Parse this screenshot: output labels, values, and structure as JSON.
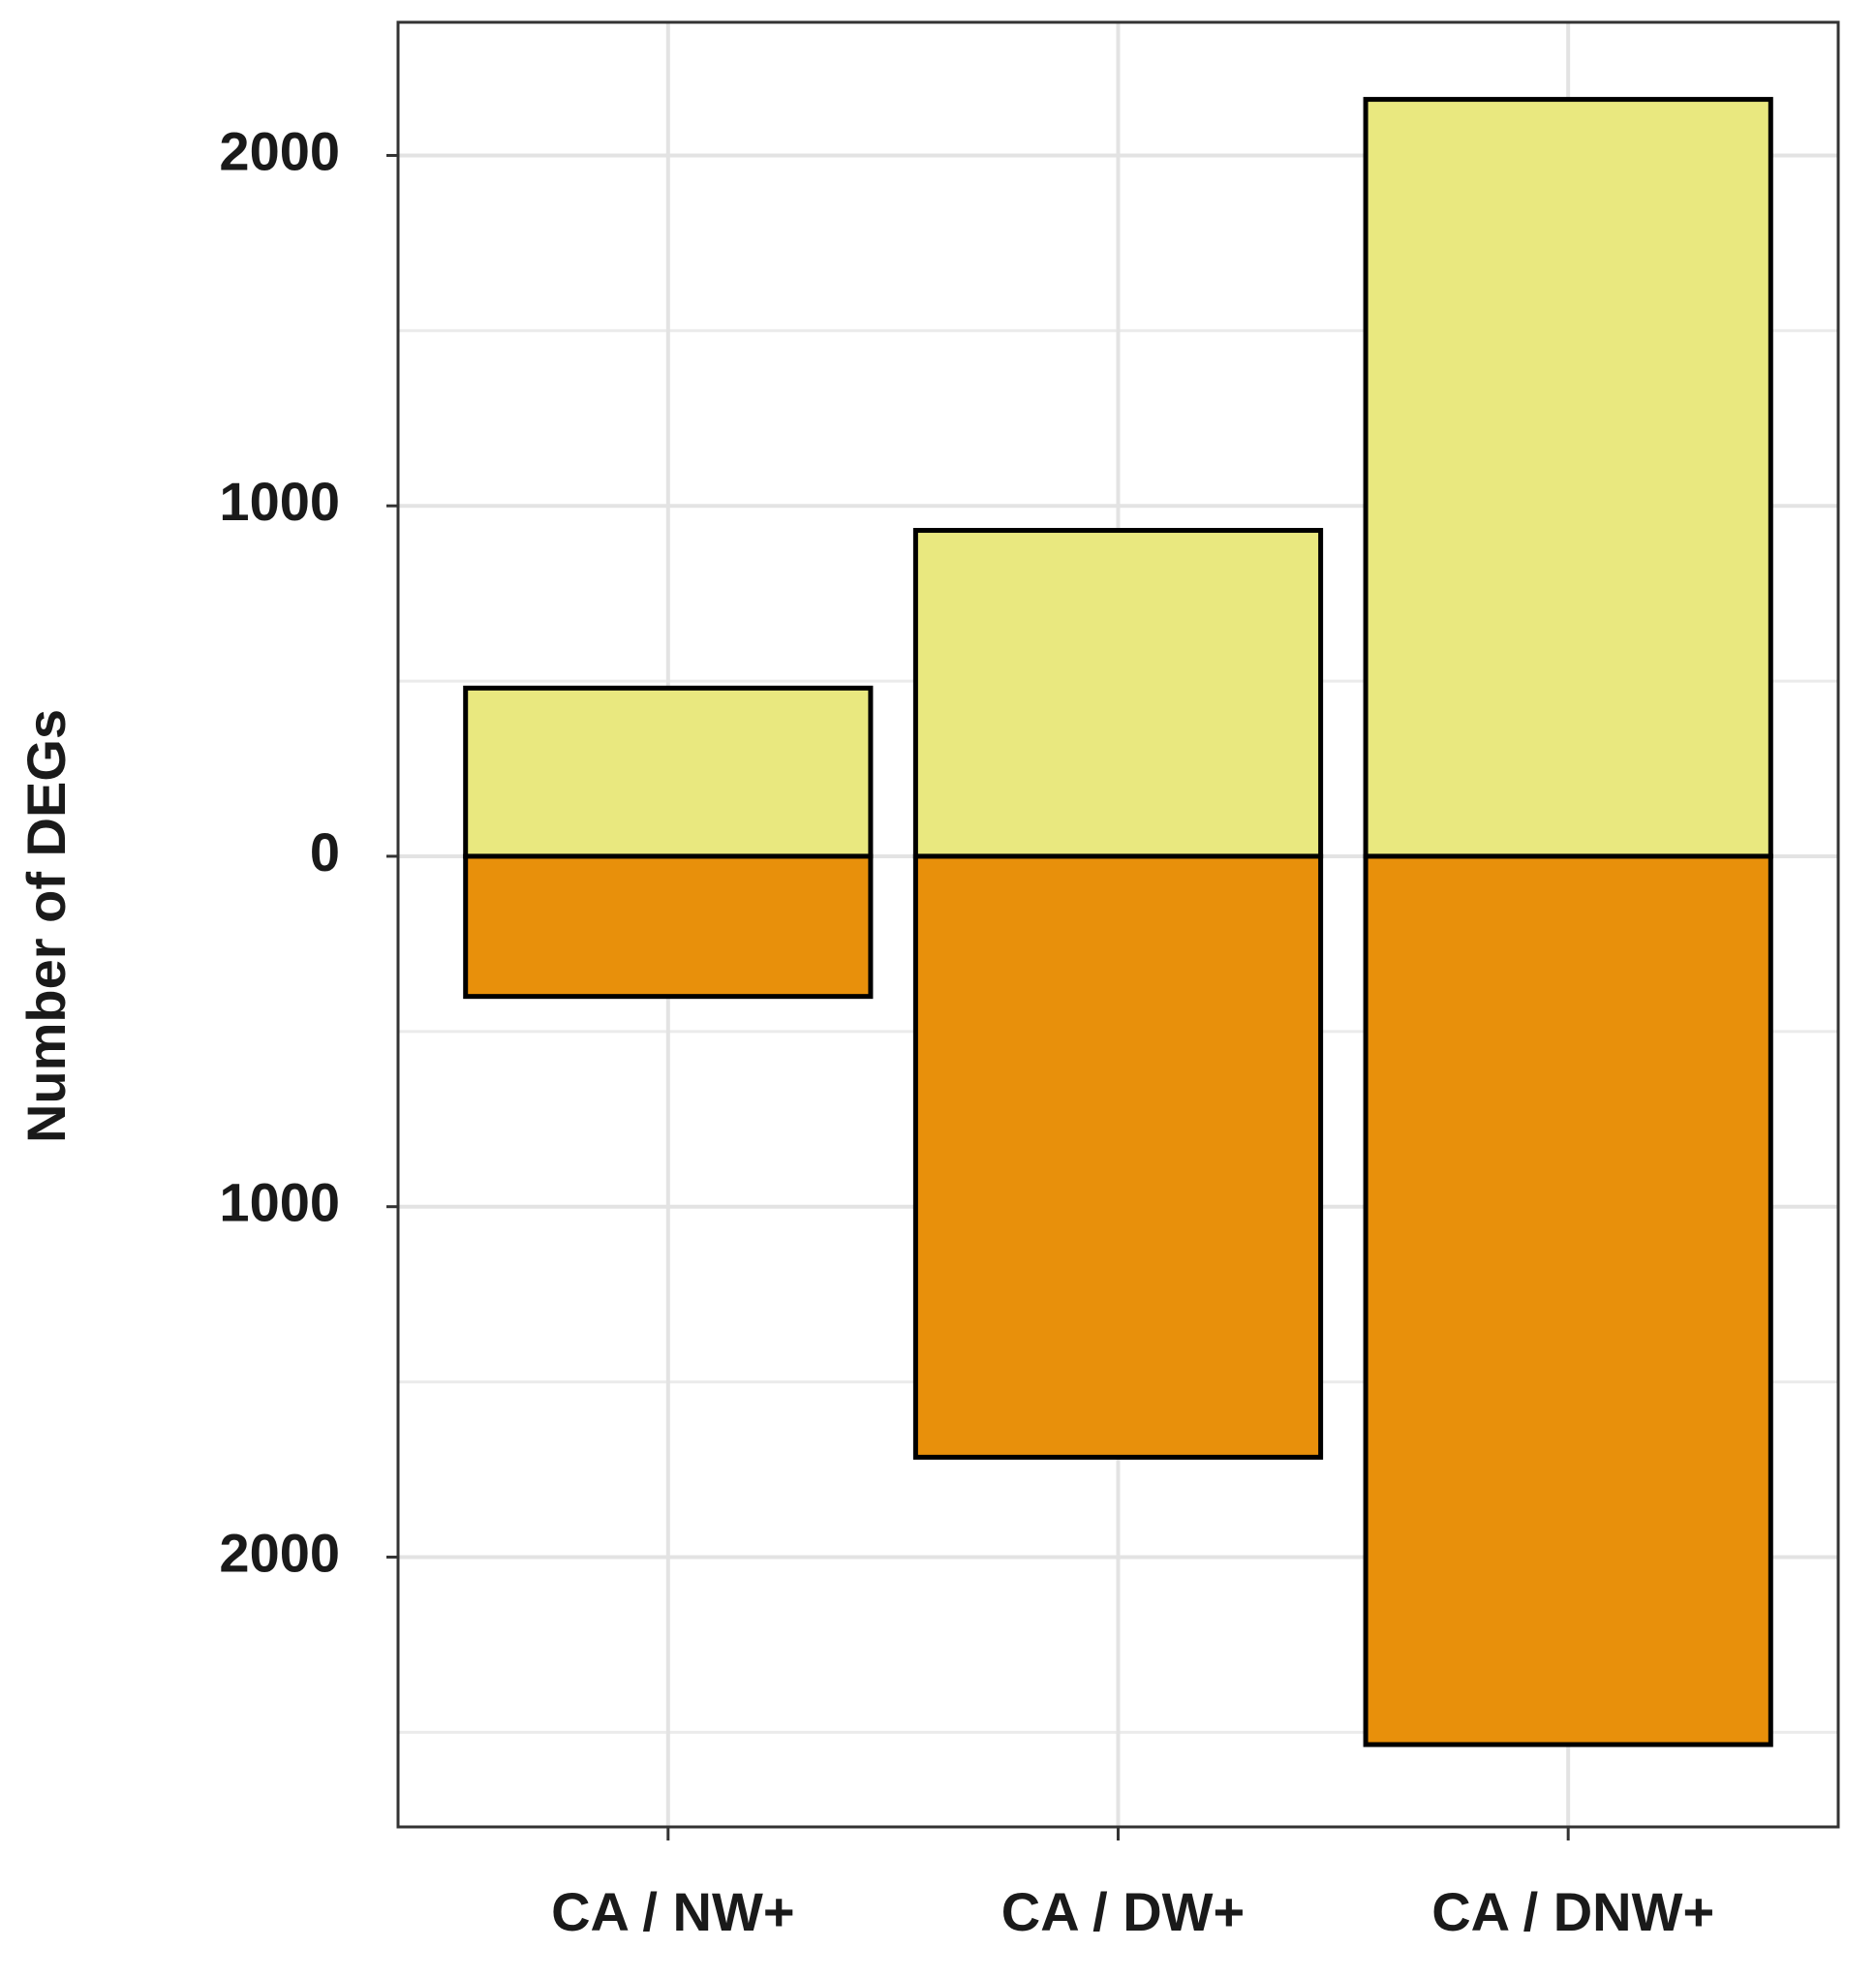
{
  "chart_data": {
    "type": "bar",
    "y_label": "Number of DEGs",
    "categories": [
      "CA / NW+",
      "CA / DW+",
      "CA / DNW+"
    ],
    "series": [
      {
        "color": "#e9e87f",
        "values": [
          480,
          930,
          2160
        ]
      },
      {
        "color": "#e8900b",
        "values": [
          -400,
          -1715,
          -2535
        ]
      }
    ],
    "ylim": [
      -2770,
      2380
    ],
    "yticks": [
      {
        "value": -2000,
        "label": "2000"
      },
      {
        "value": -1000,
        "label": "1000"
      },
      0,
      1000,
      2000
    ],
    "yminorticks": [
      -2500,
      -1500,
      -500,
      500,
      1500
    ],
    "grid": true
  }
}
